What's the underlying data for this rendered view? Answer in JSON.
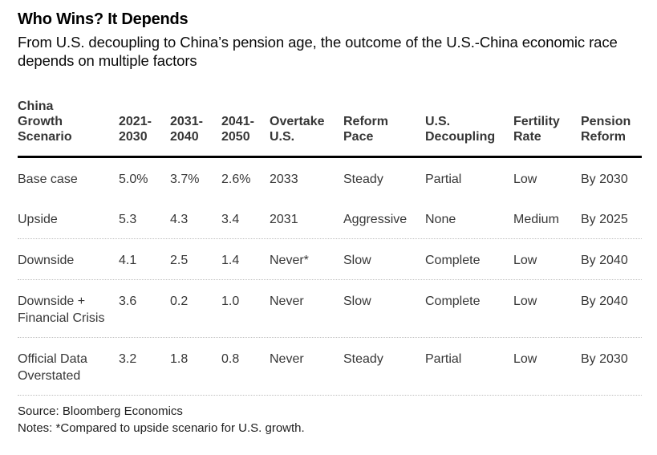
{
  "header": {
    "title": "Who Wins? It Depends",
    "subtitle": "From U.S. decoupling to China’s pension age, the outcome of the U.S.-China economic race depends on multiple factors"
  },
  "table": {
    "columns": [
      "China\nGrowth\nScenario",
      "2021-\n2030",
      "2031-\n2040",
      "2041-\n2050",
      "Overtake\nU.S.",
      "Reform\nPace",
      "U.S.\nDecoupling",
      "Fertility\nRate",
      "Pension\nReform"
    ],
    "rows": [
      [
        "Base case",
        "5.0%",
        "3.7%",
        "2.6%",
        "2033",
        "Steady",
        "Partial",
        "Low",
        "By 2030"
      ],
      [
        "Upside",
        "5.3",
        "4.3",
        "3.4",
        "2031",
        "Aggressive",
        "None",
        "Medium",
        "By 2025"
      ],
      [
        "Downside",
        "4.1",
        "2.5",
        "1.4",
        "Never*",
        "Slow",
        "Complete",
        "Low",
        "By 2040"
      ],
      [
        "Downside + Financial Crisis",
        "3.6",
        "0.2",
        "1.0",
        "Never",
        "Slow",
        "Complete",
        "Low",
        "By 2040"
      ],
      [
        "Official Data Overstated",
        "3.2",
        "1.8",
        "0.8",
        "Never",
        "Steady",
        "Partial",
        "Low",
        "By 2030"
      ]
    ]
  },
  "footer": {
    "source": "Source: Bloomberg Economics",
    "notes": "Notes: *Compared to upside scenario for U.S. growth."
  },
  "colors": {
    "background": "#ffffff",
    "title_text": "#000000",
    "table_text": "#373737",
    "header_rule": "#000000",
    "row_separator": "#c0c0c0"
  },
  "chart_data": {
    "type": "table",
    "title": "Who Wins? It Depends",
    "subtitle": "From U.S. decoupling to China’s pension age, the outcome of the U.S.-China economic race depends on multiple factors",
    "columns": [
      "China Growth Scenario",
      "2021-2030",
      "2031-2040",
      "2041-2050",
      "Overtake U.S.",
      "Reform Pace",
      "U.S. Decoupling",
      "Fertility Rate",
      "Pension Reform"
    ],
    "rows": [
      {
        "scenario": "Base case",
        "growth_2021_2030": "5.0%",
        "growth_2031_2040": "3.7%",
        "growth_2041_2050": "2.6%",
        "overtake_us": "2033",
        "reform_pace": "Steady",
        "us_decoupling": "Partial",
        "fertility_rate": "Low",
        "pension_reform": "By 2030"
      },
      {
        "scenario": "Upside",
        "growth_2021_2030": "5.3",
        "growth_2031_2040": "4.3",
        "growth_2041_2050": "3.4",
        "overtake_us": "2031",
        "reform_pace": "Aggressive",
        "us_decoupling": "None",
        "fertility_rate": "Medium",
        "pension_reform": "By 2025"
      },
      {
        "scenario": "Downside",
        "growth_2021_2030": "4.1",
        "growth_2031_2040": "2.5",
        "growth_2041_2050": "1.4",
        "overtake_us": "Never*",
        "reform_pace": "Slow",
        "us_decoupling": "Complete",
        "fertility_rate": "Low",
        "pension_reform": "By 2040"
      },
      {
        "scenario": "Downside + Financial Crisis",
        "growth_2021_2030": "3.6",
        "growth_2031_2040": "0.2",
        "growth_2041_2050": "1.0",
        "overtake_us": "Never",
        "reform_pace": "Slow",
        "us_decoupling": "Complete",
        "fertility_rate": "Low",
        "pension_reform": "By 2040"
      },
      {
        "scenario": "Official Data Overstated",
        "growth_2021_2030": "3.2",
        "growth_2031_2040": "1.8",
        "growth_2041_2050": "0.8",
        "overtake_us": "Never",
        "reform_pace": "Steady",
        "us_decoupling": "Partial",
        "fertility_rate": "Low",
        "pension_reform": "By 2030"
      }
    ],
    "source": "Source: Bloomberg Economics",
    "notes": "Notes: *Compared to upside scenario for U.S. growth."
  }
}
